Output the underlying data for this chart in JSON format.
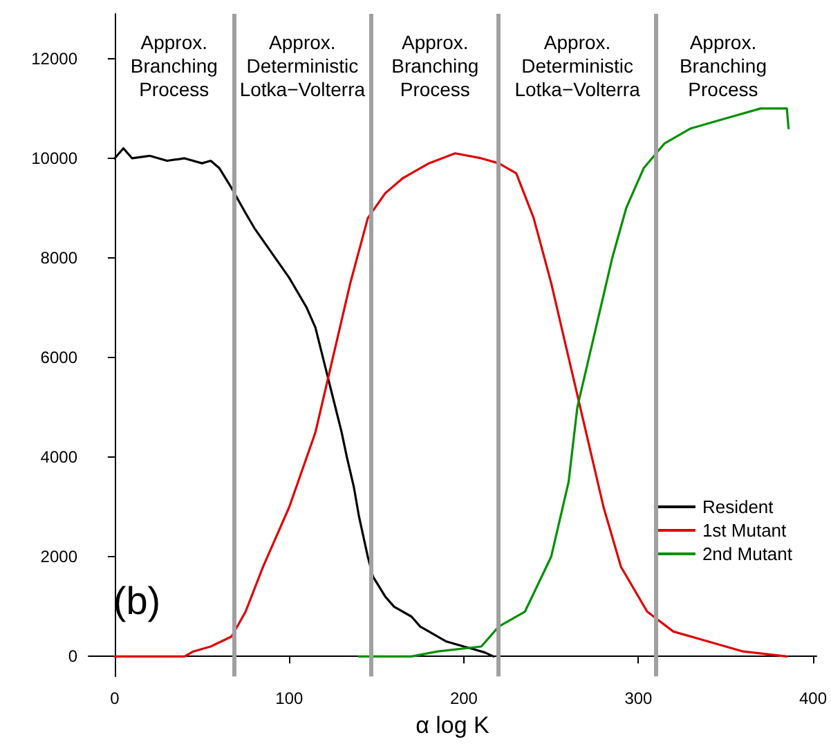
{
  "chart_data": {
    "type": "line",
    "xlabel": "α log K",
    "xlim": [
      -15,
      402
    ],
    "xticks": [
      0,
      100,
      200,
      300,
      400
    ],
    "ylim": [
      -400,
      12900
    ],
    "yticks": [
      0,
      2000,
      4000,
      6000,
      8000,
      10000,
      12000
    ],
    "grid": false,
    "legend": "bottom right",
    "marker": "none",
    "line_style": "solid",
    "series": [
      {
        "name": "Resident",
        "color": "#000000",
        "x": [
          0,
          5,
          10,
          20,
          30,
          40,
          50,
          55,
          60,
          67,
          75,
          80,
          90,
          100,
          110,
          115,
          120,
          125,
          130,
          133,
          137,
          140,
          145,
          148,
          155,
          160,
          170,
          175,
          185,
          190,
          200,
          205,
          212,
          217
        ],
        "values": [
          10000,
          10200,
          10000,
          10050,
          9950,
          10000,
          9900,
          9950,
          9800,
          9400,
          8900,
          8600,
          8100,
          7600,
          7000,
          6600,
          5900,
          5200,
          4500,
          4000,
          3400,
          2800,
          2000,
          1600,
          1200,
          1000,
          800,
          600,
          400,
          300,
          200,
          150,
          80,
          0
        ]
      },
      {
        "name": "1st Mutant",
        "color": "#e00000",
        "x": [
          0,
          20,
          40,
          45,
          55,
          67,
          75,
          85,
          100,
          115,
          125,
          135,
          145,
          155,
          165,
          180,
          195,
          210,
          220,
          230,
          240,
          250,
          260,
          270,
          280,
          290,
          305,
          320,
          340,
          360,
          385
        ],
        "values": [
          0,
          0,
          0,
          100,
          200,
          400,
          900,
          1800,
          3000,
          4500,
          6000,
          7500,
          8800,
          9300,
          9600,
          9900,
          10100,
          10000,
          9900,
          9700,
          8800,
          7500,
          6000,
          4500,
          3000,
          1800,
          900,
          500,
          300,
          100,
          0
        ]
      },
      {
        "name": "2nd Mutant",
        "color": "#009000",
        "x": [
          140,
          170,
          185,
          210,
          220,
          235,
          250,
          260,
          265,
          275,
          285,
          293,
          303,
          315,
          330,
          350,
          370,
          385,
          386
        ],
        "values": [
          0,
          0,
          100,
          200,
          600,
          900,
          2000,
          3500,
          5000,
          6500,
          8000,
          9000,
          9800,
          10300,
          10600,
          10800,
          11000,
          11000,
          10600
        ]
      }
    ],
    "ref_lines": [
      {
        "axis": "x",
        "value": 68,
        "color": "#a0a0a0"
      },
      {
        "axis": "x",
        "value": 147,
        "color": "#a0a0a0"
      },
      {
        "axis": "x",
        "value": 220,
        "color": "#a0a0a0"
      },
      {
        "axis": "x",
        "value": 310,
        "color": "#a0a0a0"
      }
    ],
    "annotations": [
      "Approx.\nBranching\nProcess",
      "Approx.\nDeterministic\nLotka−Volterra",
      "Approx.\nBranching\nProcess",
      "Approx.\nDeterministic\nLotka−Volterra",
      "Approx.\nBranching\nProcess",
      "(b)"
    ]
  }
}
